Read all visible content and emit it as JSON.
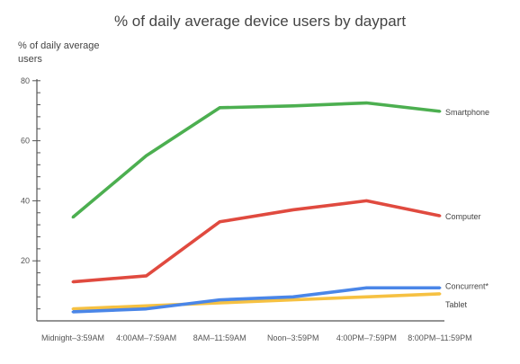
{
  "chart_data": {
    "type": "line",
    "title": "% of daily average device users by daypart",
    "xlabel": "",
    "ylabel": "% of daily average users",
    "ylim": [
      0,
      80
    ],
    "yticks": [
      20,
      40,
      60,
      80
    ],
    "y_minor_step": 4,
    "grid": false,
    "legend": "inline-right",
    "categories": [
      "Midnight–3:59AM",
      "4:00AM–7:59AM",
      "8AM–11:59AM",
      "Noon–3:59PM",
      "4:00PM–7:59PM",
      "8:00PM–11:59PM"
    ],
    "series": [
      {
        "name": "Smartphone",
        "color": "#4caf50",
        "values": [
          34.5,
          55,
          71,
          71.6,
          72.6,
          69.8
        ]
      },
      {
        "name": "Computer",
        "color": "#e04a3f",
        "values": [
          13,
          15,
          33,
          37,
          40,
          35
        ]
      },
      {
        "name": "Concurrent*",
        "color": "#4a86e8",
        "values": [
          3,
          4,
          7,
          8,
          11,
          11
        ]
      },
      {
        "name": "Tablet",
        "color": "#f6c142",
        "values": [
          4,
          5,
          6,
          7,
          8,
          9
        ]
      }
    ]
  }
}
